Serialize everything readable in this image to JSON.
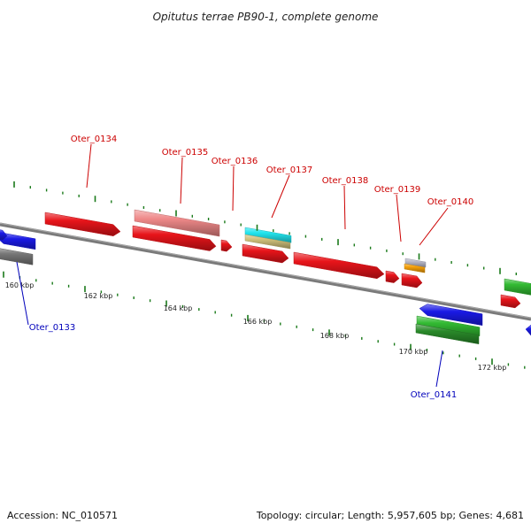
{
  "title": "Opitutus terrae PB90-1, complete genome",
  "footer": {
    "accession": "Accession: NC_010571",
    "summary": "Topology: circular; Length: 5,957,605 bp; Genes: 4,681"
  },
  "colors": {
    "backbone": "#777777",
    "tick": "#1a7a1a",
    "gene_red": "#e8141a",
    "gene_pink": "#ee8888",
    "gene_blue": "#1a1ae6",
    "gene_green": "#33bb33",
    "gene_grey": "#777777",
    "gene_cyan": "#22e5ee",
    "gene_khaki": "#cfc07a",
    "gene_orange": "#f5a00a",
    "gene_lightgrey": "#b9b9c9",
    "label_red": "#cc0000",
    "label_blue": "#0000bb"
  },
  "ticks": {
    "labels": [
      "160 kbp",
      "162 kbp",
      "164 kbp",
      "166 kbp",
      "168 kbp",
      "170 kbp",
      "172 kbp"
    ]
  },
  "gene_labels": [
    {
      "name": "Oter_0133",
      "strand": "reverse"
    },
    {
      "name": "Oter_0134",
      "strand": "forward"
    },
    {
      "name": "Oter_0135",
      "strand": "forward"
    },
    {
      "name": "Oter_0136",
      "strand": "forward"
    },
    {
      "name": "Oter_0137",
      "strand": "forward"
    },
    {
      "name": "Oter_0138",
      "strand": "forward"
    },
    {
      "name": "Oter_0139",
      "strand": "forward"
    },
    {
      "name": "Oter_0140",
      "strand": "forward"
    },
    {
      "name": "Oter_0141",
      "strand": "reverse"
    }
  ]
}
